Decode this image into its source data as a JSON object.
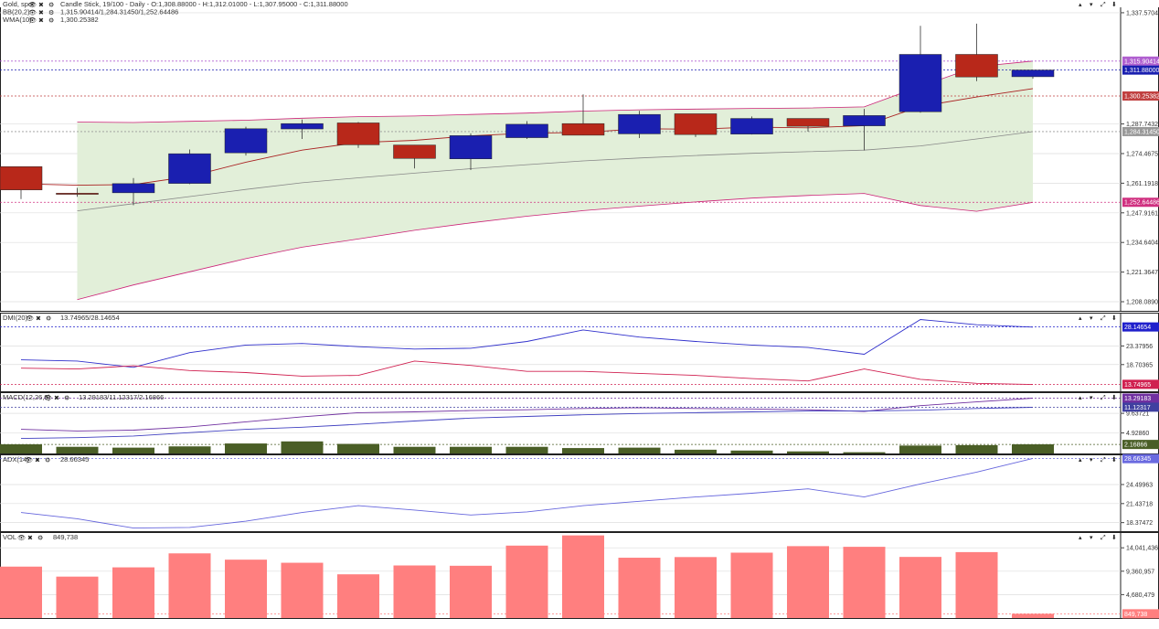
{
  "header": {
    "instrument": "Gold, spot",
    "info": "Candle Stick, 19/100 - Daily - O:1,308.88000 - H:1,312.01000 - L:1,307.95000 - C:1,311.88000"
  },
  "icons": [
    "eye-icon",
    "close-icon",
    "gear-icon",
    "collapse-up-icon",
    "collapse-down-icon",
    "expand-icon",
    "settings-icon"
  ],
  "colors": {
    "bull": "#1a1fb0",
    "bear": "#b8281a",
    "bb_fill": "#e2efd9",
    "bb_band": "#cc2277",
    "bb_mid": "#888888",
    "wma": "#aa2222",
    "dmi_plus": "#3030cc",
    "dmi_minus": "#d02050",
    "macd": "#7030a0",
    "macd_signal": "#4040c0",
    "macd_hist": "#4a5e26",
    "adx": "#6666dd",
    "vol": "#ff7f7f"
  },
  "chart_data": [
    {
      "type": "candlestick",
      "name": "price",
      "labels": {
        "bb": "BB(20,2)",
        "bb_values": "1,315.90414/1,284.31450/1,252.64486",
        "wma": "WMA(10)",
        "wma_value": "1,300.25382"
      },
      "yticks": [
        {
          "v": 1337.5704,
          "t": "1,337.57040"
        },
        {
          "v": 1287.7432,
          "t": "1,287.74329"
        },
        {
          "v": 1274.4676,
          "t": "1,274.46750"
        },
        {
          "v": 1261.1918,
          "t": "1,261.19188"
        },
        {
          "v": 1247.9162,
          "t": "1,247.91618"
        },
        {
          "v": 1234.6405,
          "t": "1,234.64047"
        },
        {
          "v": 1221.3648,
          "t": "1,221.36477"
        },
        {
          "v": 1208.0891,
          "t": "1,208.08906"
        }
      ],
      "tags": [
        {
          "v": 1315.9041,
          "t": "1,315.90414",
          "color": "#b060d0"
        },
        {
          "v": 1311.88,
          "t": "1,311.88000",
          "color": "#1a1fb0"
        },
        {
          "v": 1300.2538,
          "t": "1,300.25382",
          "color": "#c04040"
        },
        {
          "v": 1284.3145,
          "t": "1,284.31450",
          "color": "#999999"
        },
        {
          "v": 1252.6449,
          "t": "1,252.64486",
          "color": "#d03080"
        }
      ],
      "candles": [
        {
          "o": 1268.6,
          "h": 1268.6,
          "l": 1254.1,
          "c": 1258.2
        },
        {
          "o": 1256.7,
          "h": 1259.1,
          "l": 1255.1,
          "c": 1256.5
        },
        {
          "o": 1256.9,
          "h": 1263.5,
          "l": 1251.3,
          "c": 1261.0
        },
        {
          "o": 1261.1,
          "h": 1276.3,
          "l": 1260.8,
          "c": 1274.4
        },
        {
          "o": 1274.8,
          "h": 1286.5,
          "l": 1273.6,
          "c": 1285.6
        },
        {
          "o": 1285.5,
          "h": 1289.7,
          "l": 1281.0,
          "c": 1287.9
        },
        {
          "o": 1288.2,
          "h": 1288.6,
          "l": 1277.0,
          "c": 1278.4
        },
        {
          "o": 1278.3,
          "h": 1278.3,
          "l": 1267.8,
          "c": 1272.3
        },
        {
          "o": 1272.1,
          "h": 1283.5,
          "l": 1267.1,
          "c": 1282.5
        },
        {
          "o": 1281.6,
          "h": 1289.0,
          "l": 1281.0,
          "c": 1287.6
        },
        {
          "o": 1287.9,
          "h": 1301.0,
          "l": 1282.7,
          "c": 1282.7
        },
        {
          "o": 1283.3,
          "h": 1293.6,
          "l": 1281.4,
          "c": 1292.0
        },
        {
          "o": 1292.3,
          "h": 1292.3,
          "l": 1281.9,
          "c": 1283.0
        },
        {
          "o": 1283.2,
          "h": 1291.1,
          "l": 1283.0,
          "c": 1290.2
        },
        {
          "o": 1290.2,
          "h": 1290.2,
          "l": 1284.3,
          "c": 1286.7
        },
        {
          "o": 1286.9,
          "h": 1294.5,
          "l": 1275.9,
          "c": 1291.5
        },
        {
          "o": 1293.2,
          "h": 1331.7,
          "l": 1292.8,
          "c": 1318.9
        },
        {
          "o": 1318.9,
          "h": 1332.7,
          "l": 1306.9,
          "c": 1308.8
        },
        {
          "o": 1308.9,
          "h": 1312.0,
          "l": 1308.0,
          "c": 1311.9
        }
      ],
      "bb_upper": [
        null,
        1288.6,
        1288.4,
        1288.9,
        1289.4,
        1290.3,
        1291.0,
        1291.3,
        1292.0,
        1292.6,
        1293.5,
        1294.1,
        1294.4,
        1294.7,
        1294.9,
        1295.4,
        1304.6,
        1313.4,
        1315.9
      ],
      "bb_middle": [
        null,
        1248.8,
        1252.0,
        1255.2,
        1258.4,
        1261.4,
        1263.6,
        1265.7,
        1267.7,
        1269.5,
        1271.2,
        1272.5,
        1273.6,
        1274.6,
        1275.3,
        1276.0,
        1277.9,
        1281.0,
        1284.3
      ],
      "bb_lower": [
        null,
        1209.0,
        1215.6,
        1221.5,
        1227.4,
        1232.5,
        1236.2,
        1240.1,
        1243.4,
        1246.4,
        1248.9,
        1250.9,
        1252.8,
        1254.5,
        1255.7,
        1256.6,
        1251.2,
        1248.6,
        1252.6
      ],
      "wma": [
        1260.9,
        1260.3,
        1260.6,
        1264.2,
        1270.6,
        1276.0,
        1279.4,
        1280.4,
        1282.4,
        1283.6,
        1283.9,
        1285.6,
        1285.4,
        1286.3,
        1286.0,
        1287.0,
        1295.6,
        1299.8,
        1303.6
      ],
      "ylim": [
        1204.0,
        1340.0
      ]
    },
    {
      "type": "line",
      "name": "dmi",
      "label": "DMI(20)",
      "value_text": "13.74965/28.14654",
      "yticks": [
        {
          "v": 23.3796,
          "t": "23.37956"
        },
        {
          "v": 18.7037,
          "t": "18.70365"
        }
      ],
      "tags": [
        {
          "v": 28.1465,
          "t": "28.14654",
          "color": "#2020cc"
        },
        {
          "v": 13.7497,
          "t": "13.74965",
          "color": "#d02050"
        }
      ],
      "plus_di": [
        19.9,
        19.6,
        18.0,
        21.7,
        23.6,
        24.0,
        23.2,
        22.6,
        22.8,
        24.5,
        27.4,
        25.6,
        24.5,
        23.6,
        23.0,
        21.3,
        30.0,
        28.7,
        28.1
      ],
      "minus_di": [
        17.8,
        17.6,
        18.4,
        17.2,
        16.7,
        15.8,
        16.0,
        19.6,
        18.5,
        17.0,
        17.0,
        16.5,
        16.0,
        15.2,
        14.6,
        17.6,
        15.0,
        14.0,
        13.7
      ],
      "ylim": [
        12.0,
        31.5
      ]
    },
    {
      "type": "bar-line",
      "name": "macd",
      "label": "MACD(12,26,9)",
      "value_text": "13.29183/11.12317/2.16866",
      "yticks": [
        {
          "v": 9.6372,
          "t": "9.63721"
        },
        {
          "v": 4.9286,
          "t": "4.92860"
        }
      ],
      "tags": [
        {
          "v": 13.2918,
          "t": "13.29183",
          "color": "#7030a0"
        },
        {
          "v": 11.1232,
          "t": "11.12317",
          "color": "#4040a0"
        },
        {
          "v": 2.1687,
          "t": "2.16866",
          "color": "#4a5e26"
        }
      ],
      "macd": [
        5.8,
        5.4,
        5.6,
        6.4,
        7.6,
        8.8,
        9.8,
        10.0,
        10.3,
        10.5,
        10.8,
        11.0,
        10.8,
        10.7,
        10.5,
        10.1,
        11.5,
        12.4,
        13.3
      ],
      "signal": [
        3.6,
        3.8,
        4.2,
        5.0,
        5.8,
        6.3,
        7.0,
        7.8,
        8.5,
        8.9,
        9.3,
        9.6,
        9.8,
        10.0,
        10.2,
        10.2,
        10.4,
        10.8,
        11.1
      ],
      "hist": [
        2.2,
        1.6,
        1.4,
        1.7,
        2.4,
        2.9,
        2.3,
        1.6,
        1.6,
        1.6,
        1.3,
        1.4,
        0.9,
        0.7,
        0.5,
        0.3,
        1.9,
        2.0,
        2.2
      ],
      "ylim": [
        0.0,
        14.5
      ]
    },
    {
      "type": "line",
      "name": "adx",
      "label": "ADX(14)",
      "value_text": "28.66345",
      "yticks": [
        {
          "v": 24.4996,
          "t": "24.49963"
        },
        {
          "v": 21.4372,
          "t": "21.43718"
        },
        {
          "v": 18.3747,
          "t": "18.37472"
        }
      ],
      "tags": [
        {
          "v": 28.6635,
          "t": "28.66345",
          "color": "#6a6ae0"
        }
      ],
      "adx": [
        20.0,
        19.0,
        17.5,
        17.6,
        18.6,
        20.0,
        21.1,
        20.4,
        19.6,
        20.1,
        21.1,
        21.8,
        22.5,
        23.1,
        23.8,
        22.5,
        24.6,
        26.5,
        28.7
      ],
      "ylim": [
        17.0,
        29.2
      ]
    },
    {
      "type": "bar",
      "name": "volume",
      "label": "VOL",
      "value_text": "849,738",
      "yticks": [
        {
          "v": 14041436,
          "t": "14,041,436"
        },
        {
          "v": 9360957,
          "t": "9,360,957"
        },
        {
          "v": 4680479,
          "t": "4,680,479"
        }
      ],
      "tags": [
        {
          "v": 849738,
          "t": "849,738",
          "color": "#ff7f7f"
        }
      ],
      "volume": [
        10280000,
        8280000,
        10130000,
        12930000,
        11670000,
        11050000,
        8740000,
        10510000,
        10450000,
        14480000,
        16520000,
        12060000,
        12190000,
        13070000,
        14370000,
        14240000,
        12220000,
        13180000,
        849738
      ],
      "ylim": [
        0,
        17000000
      ]
    }
  ]
}
